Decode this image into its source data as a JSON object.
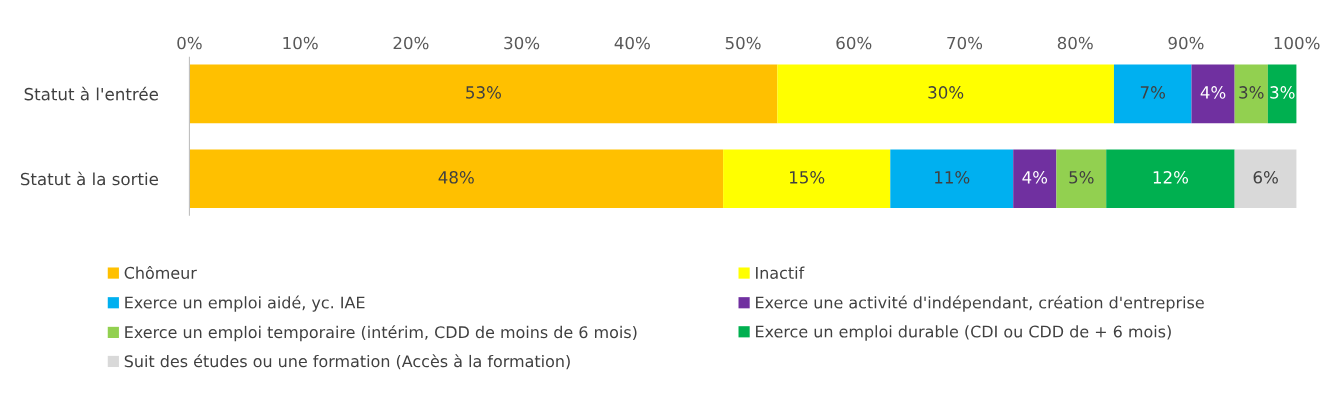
{
  "chart_data": {
    "type": "bar",
    "orientation": "horizontal",
    "stacked": true,
    "categories": [
      "Statut à l'entrée",
      "Statut à la sortie"
    ],
    "xlim": [
      0,
      100
    ],
    "xticks": [
      {
        "value": 0,
        "label": "0%"
      },
      {
        "value": 10,
        "label": "10%"
      },
      {
        "value": 20,
        "label": "20%"
      },
      {
        "value": 30,
        "label": "30%"
      },
      {
        "value": 40,
        "label": "40%"
      },
      {
        "value": 50,
        "label": "50%"
      },
      {
        "value": 60,
        "label": "60%"
      },
      {
        "value": 70,
        "label": "70%"
      },
      {
        "value": 80,
        "label": "80%"
      },
      {
        "value": 90,
        "label": "90%"
      },
      {
        "value": 100,
        "label": "100%"
      }
    ],
    "grid": false,
    "legend": "bottom",
    "series": [
      {
        "name": "Chômeur",
        "color": "#ffc000",
        "values": [
          53.1,
          48.2
        ],
        "value_labels": [
          "53%",
          "48%"
        ]
      },
      {
        "name": "Inactif",
        "color": "#ffff00",
        "values": [
          30.4,
          15.1
        ],
        "value_labels": [
          "30%",
          "15%"
        ]
      },
      {
        "name": "Exerce un emploi aidé, yc. IAE",
        "color": "#00b0f0",
        "values": [
          7.0,
          11.1
        ],
        "value_labels": [
          "7%",
          "11%"
        ]
      },
      {
        "name": "Exerce une activité d'indépendant, création d'entreprise",
        "color": "#7030a0",
        "values": [
          3.9,
          3.9
        ],
        "value_labels": [
          "4%",
          "4%"
        ]
      },
      {
        "name": "Exerce un emploi temporaire (intérim, CDD de moins de 6 mois)",
        "color": "#92d050",
        "values": [
          3.0,
          4.5
        ],
        "value_labels": [
          "3%",
          "5%"
        ]
      },
      {
        "name": "Exerce un emploi durable (CDI ou CDD de + 6 mois)",
        "color": "#00b050",
        "values": [
          2.6,
          11.6
        ],
        "value_labels": [
          "3%",
          "12%"
        ]
      },
      {
        "name": "Suit des études ou une formation (Accès à la formation)",
        "color": "#d9d9d9",
        "values": [
          null,
          5.6
        ],
        "value_labels": [
          null,
          "6%"
        ]
      }
    ]
  }
}
